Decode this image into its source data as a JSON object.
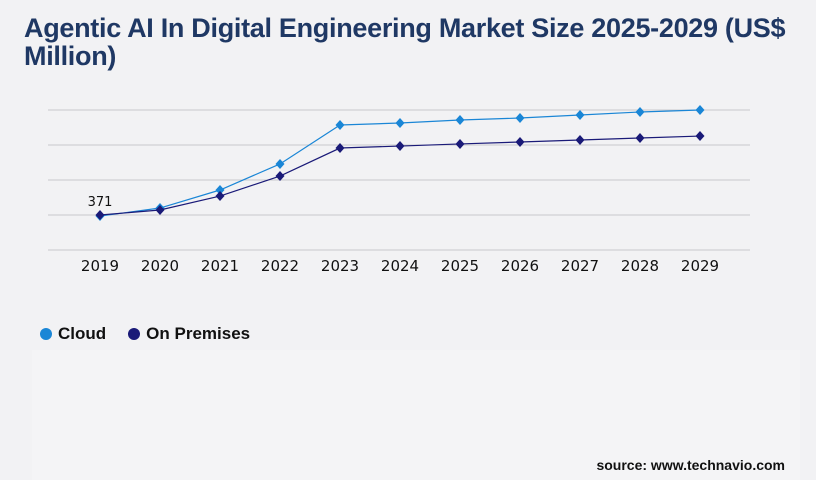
{
  "chart_data": {
    "type": "line",
    "title": "Agentic AI In Digital Engineering Market Size 2025-2029 (US$ Million)",
    "xlabel": "",
    "ylabel": "",
    "categories": [
      "2019",
      "2020",
      "2021",
      "2022",
      "2023",
      "2024",
      "2025",
      "2026",
      "2027",
      "2028",
      "2029"
    ],
    "ylim": [
      0,
      1484
    ],
    "grid": true,
    "legend_position": "bottom-left",
    "series": [
      {
        "name": "Cloud",
        "color": "#1a86d6",
        "values": [
          360,
          445,
          636,
          912,
          1325,
          1346,
          1378,
          1399,
          1431,
          1463,
          1484
        ]
      },
      {
        "name": "On Premises",
        "color": "#1a1a78",
        "values": [
          371,
          424,
          572,
          784,
          1081,
          1102,
          1124,
          1145,
          1166,
          1187,
          1208
        ]
      }
    ],
    "annotations": [
      {
        "category": "2019",
        "series": "On Premises",
        "text": "371"
      }
    ]
  },
  "source": "source: www.technavio.com"
}
